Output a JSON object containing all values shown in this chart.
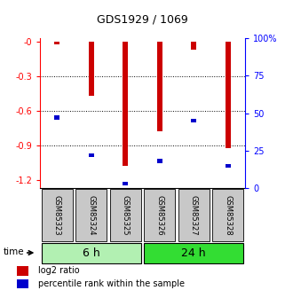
{
  "title": "GDS1929 / 1069",
  "samples": [
    "GSM85323",
    "GSM85324",
    "GSM85325",
    "GSM85326",
    "GSM85327",
    "GSM85328"
  ],
  "log2_ratios": [
    -0.02,
    -0.47,
    -1.08,
    -0.78,
    -0.07,
    -0.92
  ],
  "percentile_ranks": [
    0.47,
    0.22,
    0.03,
    0.18,
    0.45,
    0.15
  ],
  "group_labels": [
    "6 h",
    "24 h"
  ],
  "group_colors": [
    "#b2f0b2",
    "#33dd33"
  ],
  "bar_color": "#cc0000",
  "percentile_color": "#0000cc",
  "ylim_left": [
    -1.27,
    0.03
  ],
  "yticks_left": [
    0.0,
    -0.3,
    -0.6,
    -0.9,
    -1.2
  ],
  "ytick_labels_left": [
    "-0",
    "-0.3",
    "-0.6",
    "-0.9",
    "-1.2"
  ],
  "yticks_right": [
    0.0,
    0.25,
    0.5,
    0.75,
    1.0
  ],
  "ytick_labels_right": [
    "0",
    "25",
    "50",
    "75",
    "100%"
  ],
  "bar_width": 0.15,
  "pct_bar_height": 0.035,
  "sample_box_color": "#c8c8c8",
  "legend_log2": "log2 ratio",
  "legend_pct": "percentile rank within the sample"
}
